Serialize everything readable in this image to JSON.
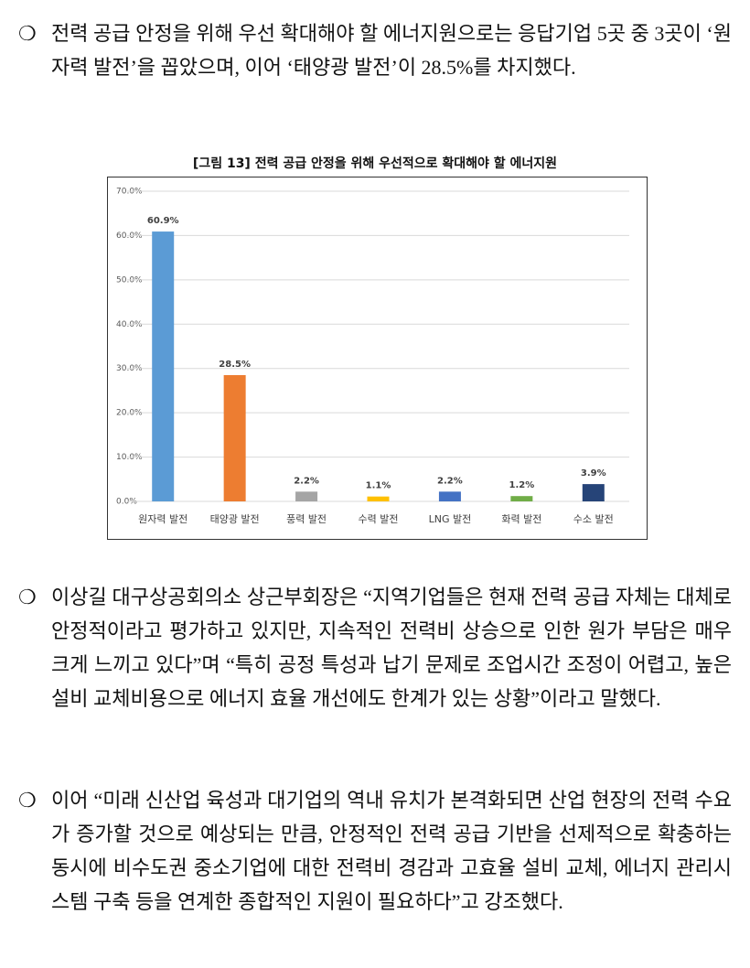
{
  "paragraphs": [
    "전력 공급 안정을 위해 우선 확대해야 할 에너지원으로는 응답기업 5곳 중 3곳이 ‘원자력 발전’을 꼽았으며, 이어 ‘태양광 발전’이 28.5%를 차지했다.",
    "이상길 대구상공회의소 상근부회장은 “지역기업들은 현재 전력 공급 자체는 대체로 안정적이라고 평가하고 있지만, 지속적인 전력비 상승으로 인한 원가 부담은 매우 크게 느끼고 있다”며 “특히 공정 특성과 납기 문제로 조업시간 조정이 어렵고, 높은 설비 교체비용으로 에너지 효율 개선에도 한계가 있는 상황”이라고 말했다.",
    "이어 “미래 신산업 육성과 대기업의 역내 유치가 본격화되면 산업 현장의 전력 수요가 증가할 것으로 예상되는 만큼, 안정적인 전력 공급 기반을 선제적으로 확충하는 동시에 비수도권 중소기업에 대한 전력비 경감과 고효율 설비 교체, 에너지 관리시스템 구축 등을 연계한 종합적인 지원이 필요하다”고 강조했다."
  ],
  "chart_data": {
    "type": "bar",
    "title": "[그림 13] 전력 공급 안정을 위해 우선적으로 확대해야 할 에너지원",
    "categories": [
      "원자력 발전",
      "태양광 발전",
      "풍력 발전",
      "수력 발전",
      "LNG 발전",
      "화력 발전",
      "수소 발전"
    ],
    "values": [
      60.9,
      28.5,
      2.2,
      1.1,
      2.2,
      1.2,
      3.9
    ],
    "value_labels": [
      "60.9%",
      "28.5%",
      "2.2%",
      "1.1%",
      "2.2%",
      "1.2%",
      "3.9%"
    ],
    "colors": [
      "#5b9bd5",
      "#ed7d31",
      "#a5a5a5",
      "#ffc000",
      "#4472c4",
      "#70ad47",
      "#264478"
    ],
    "ylim": [
      0,
      70
    ],
    "yticks": [
      {
        "value": 0,
        "label": "0.0%"
      },
      {
        "value": 10,
        "label": "10.0%"
      },
      {
        "value": 20,
        "label": "20.0%"
      },
      {
        "value": 30,
        "label": "30.0%"
      },
      {
        "value": 40,
        "label": "40.0%"
      },
      {
        "value": 50,
        "label": "50.0%"
      },
      {
        "value": 60,
        "label": "60.0%"
      },
      {
        "value": 70,
        "label": "70.0%"
      }
    ],
    "grid": true
  }
}
